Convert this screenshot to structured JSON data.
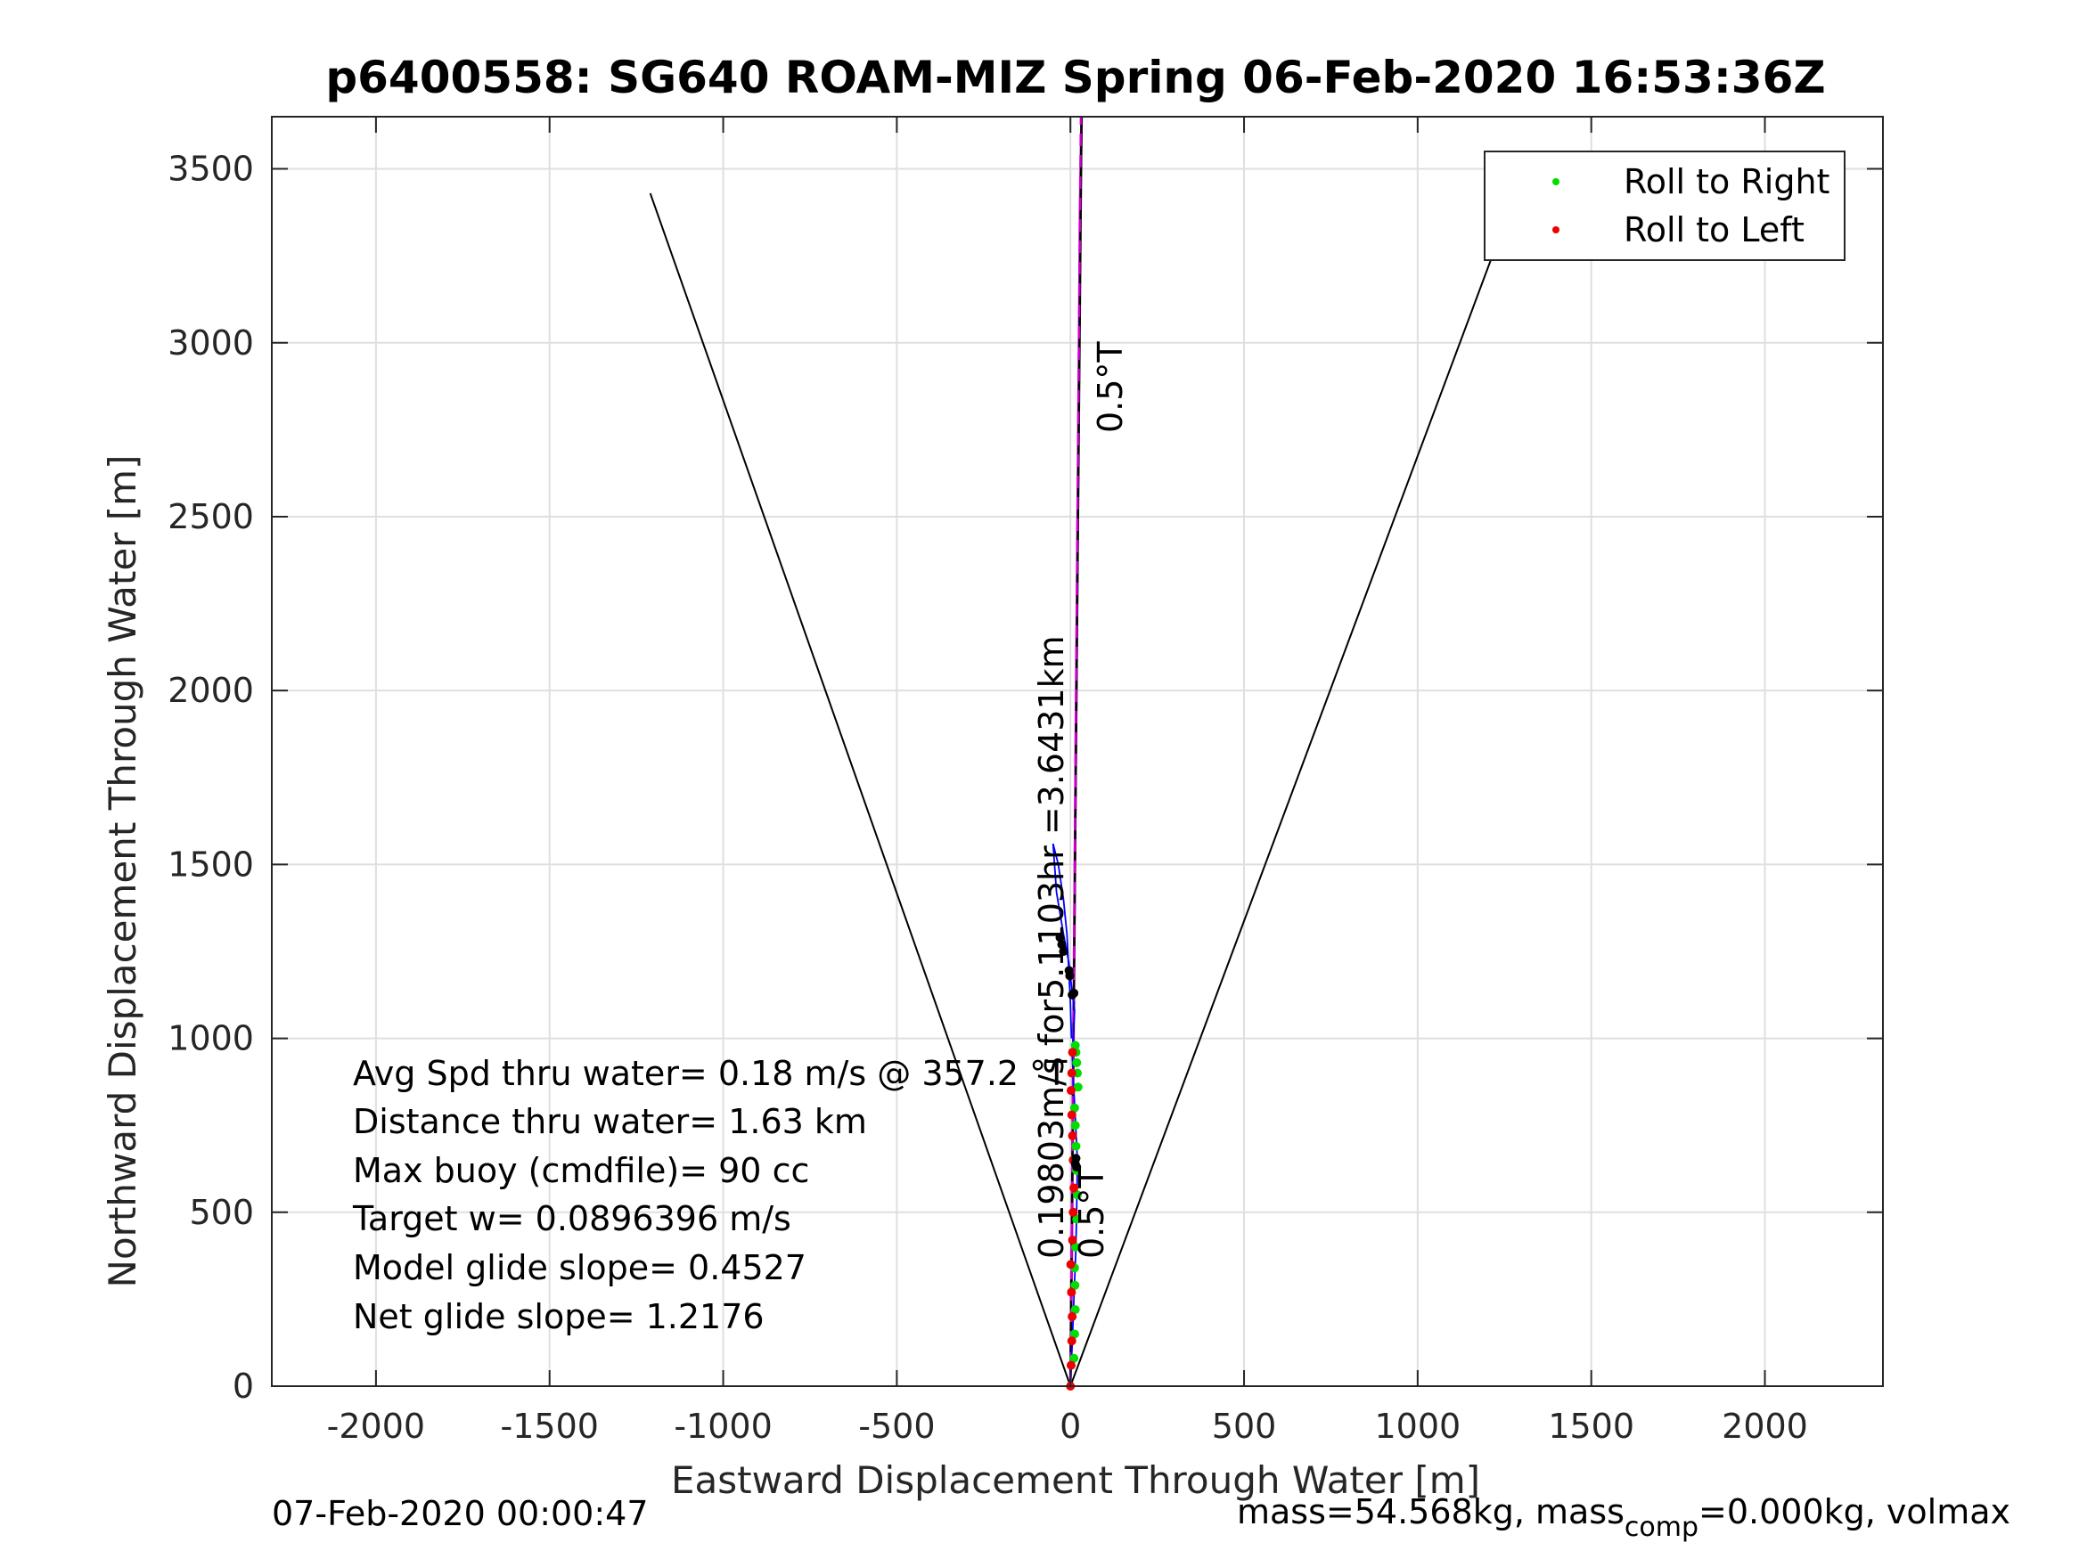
{
  "chart_data": {
    "type": "line",
    "title": "p6400558: SG640 ROAM-MIZ Spring 06-Feb-2020 16:53:36Z",
    "xlabel": "Eastward Displacement Through Water [m]",
    "ylabel": "Northward Displacement Through Water [m]",
    "xlim": [
      -2300,
      2340
    ],
    "ylim": [
      0,
      3650
    ],
    "xticks": [
      -2000,
      -1500,
      -1000,
      -500,
      0,
      500,
      1000,
      1500,
      2000
    ],
    "xtick_labels": [
      "-2000",
      "-1500",
      "-1000",
      "-500",
      "0",
      "500",
      "1000",
      "1500",
      "2000"
    ],
    "yticks": [
      0,
      500,
      1000,
      1500,
      2000,
      2500,
      3000,
      3500
    ],
    "ytick_labels": [
      "0",
      "500",
      "1000",
      "1500",
      "2000",
      "2500",
      "3000",
      "3500"
    ],
    "grid": true,
    "legend_position": "top-right",
    "legend": [
      {
        "label": "Roll to Right",
        "color": "#00dd00"
      },
      {
        "label": "Roll to Left",
        "color": "#ee0000"
      }
    ],
    "cone_lines": [
      {
        "x": [
          0,
          -1210
        ],
        "y": [
          0,
          3430
        ],
        "color": "#000000"
      },
      {
        "x": [
          0,
          1275
        ],
        "y": [
          0,
          3410
        ],
        "color": "#000000"
      }
    ],
    "heading_line": {
      "x": [
        0,
        32
      ],
      "y": [
        0,
        3650
      ],
      "color": "#000000"
    },
    "dashed_line": {
      "x": [
        0,
        30
      ],
      "y": [
        0,
        3650
      ],
      "color": "#cc00cc"
    },
    "magenta_line": {
      "x": [
        0,
        4,
        8,
        12,
        16,
        20,
        24,
        28,
        32
      ],
      "y": [
        0,
        400,
        900,
        1400,
        1900,
        2400,
        2900,
        3400,
        3650
      ],
      "color": "#dd00dd"
    },
    "track": {
      "color": "#0000ff",
      "x": [
        0,
        5,
        10,
        15,
        18,
        20,
        15,
        10,
        5,
        8,
        12,
        5,
        0,
        -5,
        -20,
        -40,
        -50,
        -35,
        -20,
        -10,
        -5,
        0,
        3
      ],
      "y": [
        0,
        120,
        250,
        380,
        500,
        650,
        750,
        850,
        950,
        1000,
        1080,
        1130,
        1180,
        1220,
        1300,
        1420,
        1560,
        1500,
        1400,
        1300,
        1200,
        1100,
        1000
      ]
    },
    "series": [
      {
        "name": "Roll to Right",
        "color": "#00dd00",
        "x": [
          10,
          12,
          14,
          13,
          12,
          15,
          18,
          20,
          18,
          16,
          14,
          12,
          22,
          20,
          18,
          16,
          14
        ],
        "y": [
          80,
          150,
          220,
          290,
          340,
          400,
          480,
          550,
          620,
          690,
          750,
          800,
          860,
          900,
          930,
          960,
          980
        ]
      },
      {
        "name": "Roll to Left",
        "color": "#ee0000",
        "x": [
          0,
          2,
          4,
          5,
          3,
          1,
          6,
          8,
          10,
          8,
          6,
          4,
          2,
          4,
          6
        ],
        "y": [
          0,
          60,
          130,
          200,
          270,
          350,
          420,
          500,
          570,
          650,
          720,
          780,
          850,
          900,
          960
        ]
      },
      {
        "name": "",
        "color": "#000000",
        "x": [
          14,
          16,
          18,
          -2,
          -4,
          5,
          10,
          -25,
          -30,
          -20
        ],
        "y": [
          640,
          655,
          630,
          1180,
          1195,
          1125,
          1130,
          1270,
          1290,
          1250
        ]
      }
    ],
    "annotations": {
      "stats": [
        "Avg Spd thru water=  0.18 m/s @ 357.2 °T",
        "Distance thru water=  1.63 km",
        "Max buoy (cmdfile)= 90 cc",
        "Target w= 0.0896396 m/s",
        "Model glide slope= 0.4527",
        "Net glide slope= 1.2176"
      ],
      "current_text": "0.19803m/s for5.1103hr =3.6431km",
      "heading_label_top": "0.5°T",
      "heading_label_bottom": "0.5°T"
    },
    "footer_left": "07-Feb-2020 00:00:47",
    "footer_right_main": "mass=54.568kg, mass",
    "footer_right_sub": "comp",
    "footer_right_tail": "=0.000kg, volmax"
  }
}
